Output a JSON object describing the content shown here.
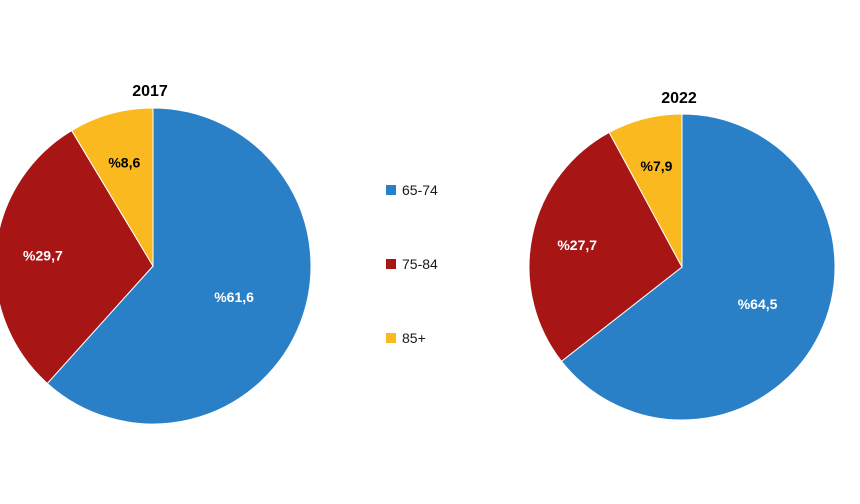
{
  "chart_data": [
    {
      "type": "pie",
      "title": "2017",
      "slices": [
        {
          "category": "65-74",
          "value": 61.6,
          "label": "%61,6",
          "color": "#2a80c7"
        },
        {
          "category": "75-84",
          "value": 29.7,
          "label": "%29,7",
          "color": "#a71515"
        },
        {
          "category": "85+",
          "value": 8.6,
          "label": "%8,6",
          "color": "#fbb920"
        }
      ]
    },
    {
      "type": "pie",
      "title": "2022",
      "slices": [
        {
          "category": "65-74",
          "value": 64.5,
          "label": "%64,5",
          "color": "#2a80c7"
        },
        {
          "category": "75-84",
          "value": 27.7,
          "label": "%27,7",
          "color": "#a71515"
        },
        {
          "category": "85+",
          "value": 7.9,
          "label": "%7,9",
          "color": "#fbb920"
        }
      ]
    }
  ],
  "legend": {
    "placement": "center",
    "items": [
      {
        "label": "65-74",
        "color": "#2a80c7"
      },
      {
        "label": "75-84",
        "color": "#a71515"
      },
      {
        "label": "85+",
        "color": "#fbb920"
      }
    ]
  }
}
